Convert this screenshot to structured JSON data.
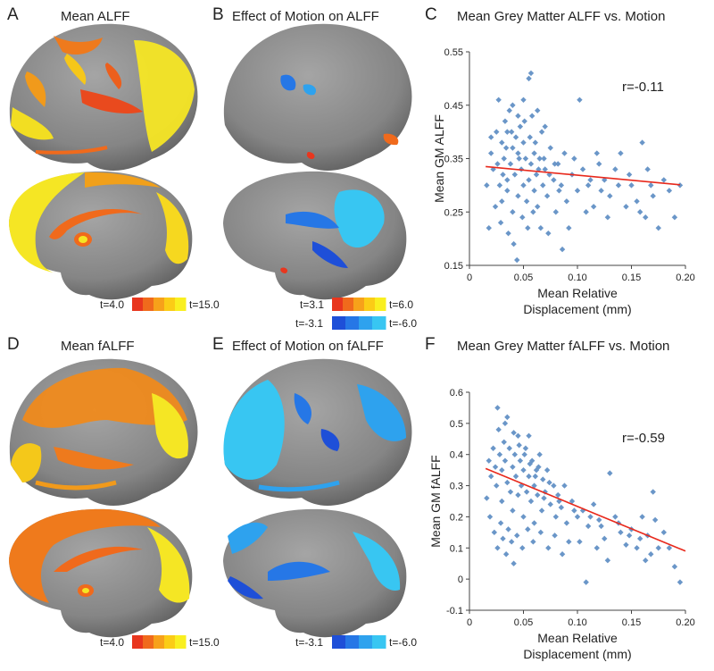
{
  "panels": {
    "A": {
      "letter": "A",
      "title": "Mean ALFF",
      "colorbar": {
        "min_label": "t=4.0",
        "max_label": "t=15.0"
      }
    },
    "B": {
      "letter": "B",
      "title": "Effect of Motion on ALFF",
      "colorbar_pos": {
        "min_label": "t=3.1",
        "max_label": "t=6.0"
      },
      "colorbar_neg": {
        "min_label": "t=-3.1",
        "max_label": "t=-6.0"
      }
    },
    "C": {
      "letter": "C"
    },
    "D": {
      "letter": "D",
      "title": "Mean fALFF",
      "colorbar": {
        "min_label": "t=4.0",
        "max_label": "t=15.0"
      }
    },
    "E": {
      "letter": "E",
      "title": "Effect of Motion on fALFF",
      "colorbar_neg": {
        "min_label": "t=-3.1",
        "max_label": "t=-6.0"
      }
    },
    "F": {
      "letter": "F"
    }
  },
  "colors": {
    "brain": "#8a8a8a",
    "hot": [
      "#e8361e",
      "#f06a1c",
      "#f7a11a",
      "#fbcc16",
      "#f9ef20"
    ],
    "cool": [
      "#1e4fd8",
      "#2677e6",
      "#2ea2ee",
      "#38c6f2"
    ],
    "points": "#6a96c8",
    "fit": "#e8291c"
  },
  "chart_data": [
    {
      "type": "scatter",
      "title": "Mean Grey Matter ALFF vs. Motion",
      "xlabel": "Mean Relative Displacement (mm)",
      "ylabel": "Mean GM ALFF",
      "xlim": [
        0,
        0.2
      ],
      "ylim": [
        0.15,
        0.55
      ],
      "xticks": [
        "0",
        "0.05",
        "0.10",
        "0.15",
        "0.20"
      ],
      "yticks": [
        "0.15",
        "0.25",
        "0.35",
        "0.45",
        "0.55"
      ],
      "annotation": "r=-0.11",
      "fit": {
        "x": [
          0.015,
          0.195
        ],
        "y": [
          0.335,
          0.301
        ]
      },
      "points": [
        [
          0.02,
          0.36
        ],
        [
          0.022,
          0.33
        ],
        [
          0.025,
          0.4
        ],
        [
          0.027,
          0.46
        ],
        [
          0.028,
          0.3
        ],
        [
          0.03,
          0.38
        ],
        [
          0.03,
          0.27
        ],
        [
          0.032,
          0.35
        ],
        [
          0.033,
          0.42
        ],
        [
          0.035,
          0.31
        ],
        [
          0.035,
          0.29
        ],
        [
          0.037,
          0.44
        ],
        [
          0.038,
          0.34
        ],
        [
          0.04,
          0.37
        ],
        [
          0.04,
          0.25
        ],
        [
          0.042,
          0.32
        ],
        [
          0.043,
          0.39
        ],
        [
          0.045,
          0.28
        ],
        [
          0.045,
          0.36
        ],
        [
          0.047,
          0.41
        ],
        [
          0.048,
          0.33
        ],
        [
          0.05,
          0.3
        ],
        [
          0.05,
          0.38
        ],
        [
          0.052,
          0.35
        ],
        [
          0.053,
          0.27
        ],
        [
          0.055,
          0.5
        ],
        [
          0.055,
          0.31
        ],
        [
          0.057,
          0.34
        ],
        [
          0.058,
          0.43
        ],
        [
          0.06,
          0.29
        ],
        [
          0.06,
          0.36
        ],
        [
          0.062,
          0.32
        ],
        [
          0.063,
          0.26
        ],
        [
          0.065,
          0.35
        ],
        [
          0.067,
          0.4
        ],
        [
          0.068,
          0.3
        ],
        [
          0.07,
          0.33
        ],
        [
          0.072,
          0.28
        ],
        [
          0.075,
          0.37
        ],
        [
          0.078,
          0.31
        ],
        [
          0.08,
          0.25
        ],
        [
          0.082,
          0.34
        ],
        [
          0.085,
          0.3
        ],
        [
          0.088,
          0.36
        ],
        [
          0.09,
          0.27
        ],
        [
          0.095,
          0.32
        ],
        [
          0.1,
          0.29
        ],
        [
          0.102,
          0.46
        ],
        [
          0.105,
          0.33
        ],
        [
          0.11,
          0.3
        ],
        [
          0.115,
          0.26
        ],
        [
          0.12,
          0.34
        ],
        [
          0.125,
          0.31
        ],
        [
          0.13,
          0.28
        ],
        [
          0.135,
          0.33
        ],
        [
          0.14,
          0.36
        ],
        [
          0.15,
          0.3
        ],
        [
          0.155,
          0.27
        ],
        [
          0.16,
          0.38
        ],
        [
          0.163,
          0.24
        ],
        [
          0.165,
          0.33
        ],
        [
          0.17,
          0.28
        ],
        [
          0.175,
          0.22
        ],
        [
          0.18,
          0.31
        ],
        [
          0.19,
          0.24
        ],
        [
          0.195,
          0.3
        ],
        [
          0.016,
          0.3
        ],
        [
          0.018,
          0.22
        ],
        [
          0.024,
          0.26
        ],
        [
          0.029,
          0.23
        ],
        [
          0.036,
          0.21
        ],
        [
          0.041,
          0.19
        ],
        [
          0.044,
          0.16
        ],
        [
          0.049,
          0.24
        ],
        [
          0.054,
          0.22
        ],
        [
          0.059,
          0.25
        ],
        [
          0.066,
          0.22
        ],
        [
          0.073,
          0.21
        ],
        [
          0.086,
          0.18
        ],
        [
          0.092,
          0.22
        ],
        [
          0.108,
          0.25
        ],
        [
          0.128,
          0.24
        ],
        [
          0.145,
          0.26
        ],
        [
          0.158,
          0.25
        ],
        [
          0.026,
          0.34
        ],
        [
          0.031,
          0.32
        ],
        [
          0.034,
          0.37
        ],
        [
          0.039,
          0.4
        ],
        [
          0.046,
          0.35
        ],
        [
          0.051,
          0.42
        ],
        [
          0.056,
          0.39
        ],
        [
          0.061,
          0.38
        ],
        [
          0.064,
          0.33
        ],
        [
          0.069,
          0.35
        ],
        [
          0.074,
          0.32
        ],
        [
          0.079,
          0.34
        ],
        [
          0.083,
          0.29
        ],
        [
          0.097,
          0.35
        ],
        [
          0.112,
          0.31
        ],
        [
          0.118,
          0.36
        ],
        [
          0.122,
          0.29
        ],
        [
          0.138,
          0.3
        ],
        [
          0.148,
          0.32
        ],
        [
          0.168,
          0.3
        ],
        [
          0.185,
          0.29
        ],
        [
          0.057,
          0.51
        ],
        [
          0.04,
          0.45
        ],
        [
          0.063,
          0.44
        ],
        [
          0.02,
          0.39
        ],
        [
          0.045,
          0.43
        ],
        [
          0.07,
          0.41
        ],
        [
          0.05,
          0.46
        ],
        [
          0.035,
          0.4
        ]
      ]
    },
    {
      "type": "scatter",
      "title": "Mean Grey Matter fALFF vs. Motion",
      "xlabel": "Mean Relative Displacement (mm)",
      "ylabel": "Mean GM fALFF",
      "xlim": [
        0,
        0.2
      ],
      "ylim": [
        -0.1,
        0.6
      ],
      "xticks": [
        "0",
        "0.05",
        "0.10",
        "0.15",
        "0.20"
      ],
      "yticks": [
        "-0.1",
        "0",
        "0.1",
        "0.2",
        "0.3",
        "0.4",
        "0.5",
        "0.6"
      ],
      "annotation": "r=-0.59",
      "fit": {
        "x": [
          0.015,
          0.2
        ],
        "y": [
          0.355,
          0.09
        ]
      },
      "points": [
        [
          0.018,
          0.38
        ],
        [
          0.02,
          0.33
        ],
        [
          0.022,
          0.42
        ],
        [
          0.024,
          0.36
        ],
        [
          0.025,
          0.3
        ],
        [
          0.027,
          0.48
        ],
        [
          0.028,
          0.4
        ],
        [
          0.03,
          0.35
        ],
        [
          0.03,
          0.25
        ],
        [
          0.032,
          0.44
        ],
        [
          0.033,
          0.38
        ],
        [
          0.035,
          0.31
        ],
        [
          0.035,
          0.52
        ],
        [
          0.037,
          0.42
        ],
        [
          0.038,
          0.28
        ],
        [
          0.04,
          0.36
        ],
        [
          0.04,
          0.22
        ],
        [
          0.042,
          0.4
        ],
        [
          0.043,
          0.33
        ],
        [
          0.045,
          0.46
        ],
        [
          0.045,
          0.27
        ],
        [
          0.047,
          0.38
        ],
        [
          0.048,
          0.3
        ],
        [
          0.05,
          0.35
        ],
        [
          0.05,
          0.2
        ],
        [
          0.052,
          0.42
        ],
        [
          0.053,
          0.28
        ],
        [
          0.055,
          0.33
        ],
        [
          0.055,
          0.46
        ],
        [
          0.057,
          0.25
        ],
        [
          0.058,
          0.38
        ],
        [
          0.06,
          0.3
        ],
        [
          0.06,
          0.18
        ],
        [
          0.062,
          0.35
        ],
        [
          0.063,
          0.27
        ],
        [
          0.065,
          0.4
        ],
        [
          0.067,
          0.22
        ],
        [
          0.068,
          0.32
        ],
        [
          0.07,
          0.28
        ],
        [
          0.072,
          0.35
        ],
        [
          0.075,
          0.24
        ],
        [
          0.078,
          0.3
        ],
        [
          0.08,
          0.2
        ],
        [
          0.082,
          0.27
        ],
        [
          0.085,
          0.23
        ],
        [
          0.088,
          0.3
        ],
        [
          0.09,
          0.18
        ],
        [
          0.095,
          0.25
        ],
        [
          0.1,
          0.2
        ],
        [
          0.102,
          0.12
        ],
        [
          0.105,
          0.22
        ],
        [
          0.11,
          0.17
        ],
        [
          0.115,
          0.24
        ],
        [
          0.12,
          0.19
        ],
        [
          0.125,
          0.13
        ],
        [
          0.13,
          0.34
        ],
        [
          0.135,
          0.2
        ],
        [
          0.14,
          0.15
        ],
        [
          0.15,
          0.16
        ],
        [
          0.155,
          0.1
        ],
        [
          0.16,
          0.2
        ],
        [
          0.163,
          0.06
        ],
        [
          0.165,
          0.14
        ],
        [
          0.17,
          0.28
        ],
        [
          0.175,
          0.1
        ],
        [
          0.18,
          0.15
        ],
        [
          0.19,
          0.04
        ],
        [
          0.195,
          -0.01
        ],
        [
          0.016,
          0.26
        ],
        [
          0.019,
          0.2
        ],
        [
          0.023,
          0.15
        ],
        [
          0.026,
          0.1
        ],
        [
          0.029,
          0.18
        ],
        [
          0.031,
          0.13
        ],
        [
          0.034,
          0.08
        ],
        [
          0.036,
          0.16
        ],
        [
          0.039,
          0.12
        ],
        [
          0.041,
          0.05
        ],
        [
          0.044,
          0.14
        ],
        [
          0.049,
          0.1
        ],
        [
          0.054,
          0.16
        ],
        [
          0.059,
          0.12
        ],
        [
          0.066,
          0.15
        ],
        [
          0.073,
          0.1
        ],
        [
          0.079,
          0.14
        ],
        [
          0.086,
          0.08
        ],
        [
          0.092,
          0.12
        ],
        [
          0.108,
          -0.01
        ],
        [
          0.118,
          0.1
        ],
        [
          0.128,
          0.06
        ],
        [
          0.145,
          0.11
        ],
        [
          0.158,
          0.13
        ],
        [
          0.168,
          0.08
        ],
        [
          0.185,
          0.1
        ],
        [
          0.026,
          0.55
        ],
        [
          0.033,
          0.5
        ],
        [
          0.041,
          0.47
        ],
        [
          0.046,
          0.43
        ],
        [
          0.051,
          0.4
        ],
        [
          0.056,
          0.37
        ],
        [
          0.061,
          0.33
        ],
        [
          0.064,
          0.36
        ],
        [
          0.069,
          0.26
        ],
        [
          0.074,
          0.31
        ],
        [
          0.083,
          0.25
        ],
        [
          0.097,
          0.22
        ],
        [
          0.112,
          0.2
        ],
        [
          0.122,
          0.17
        ],
        [
          0.138,
          0.18
        ],
        [
          0.148,
          0.14
        ],
        [
          0.172,
          0.19
        ]
      ]
    }
  ]
}
